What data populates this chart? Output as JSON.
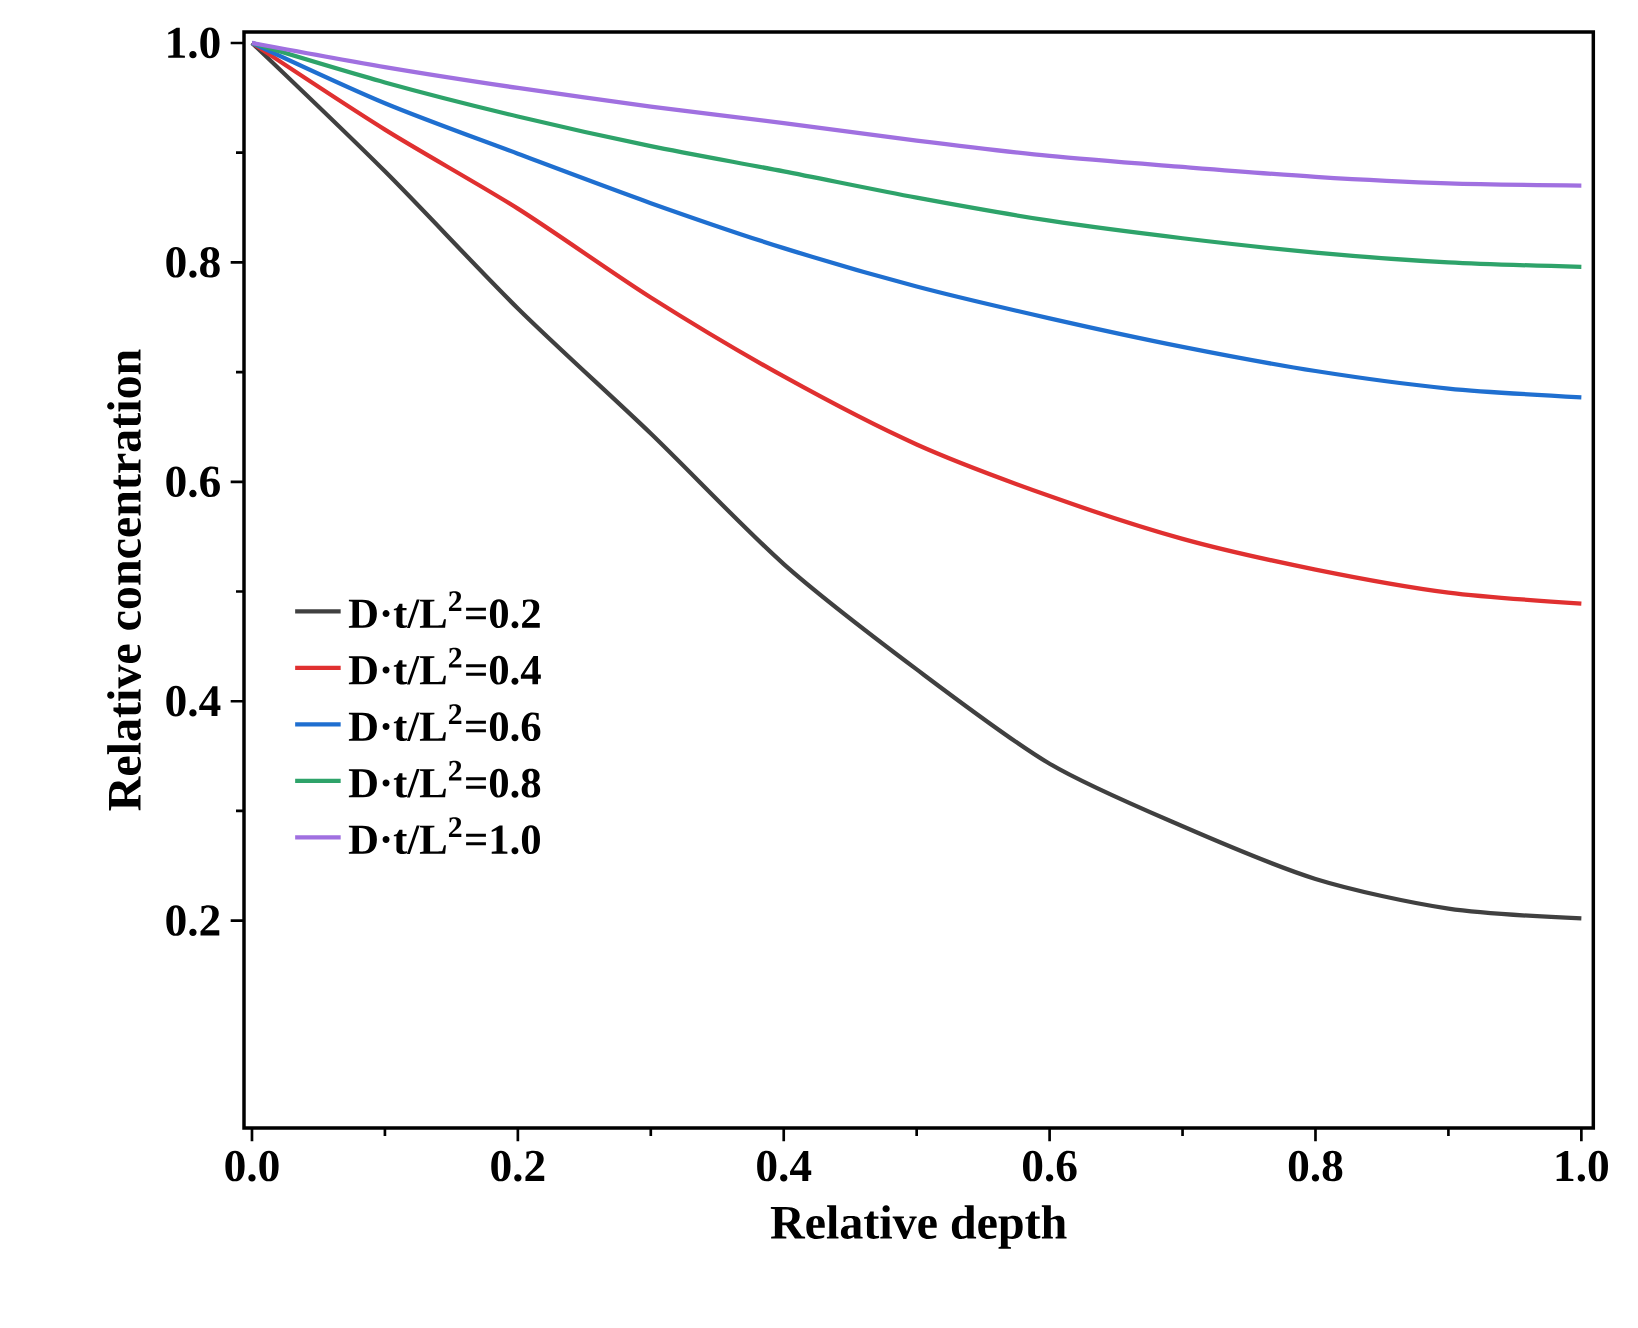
{
  "chart_data": {
    "type": "line",
    "xlabel": "Relative depth",
    "ylabel": "Relative concentration",
    "x": [
      0,
      0.1,
      0.2,
      0.3,
      0.4,
      0.5,
      0.6,
      0.7,
      0.8,
      0.9,
      1.0
    ],
    "series": [
      {
        "name": "D·t/L$^{2}$=0.2",
        "color": "#404040",
        "values": [
          1.0,
          0.883,
          0.758,
          0.644,
          0.525,
          0.429,
          0.343,
          0.286,
          0.238,
          0.211,
          0.202
        ]
      },
      {
        "name": "D·t/L$^{2}$=0.4",
        "color": "#e03030",
        "values": [
          1.0,
          0.921,
          0.849,
          0.768,
          0.696,
          0.634,
          0.587,
          0.548,
          0.52,
          0.499,
          0.489
        ]
      },
      {
        "name": "D·t/L$^{2}$=0.6",
        "color": "#1f6fd0",
        "values": [
          1.0,
          0.945,
          0.899,
          0.854,
          0.813,
          0.778,
          0.749,
          0.723,
          0.701,
          0.685,
          0.677
        ]
      },
      {
        "name": "D·t/L$^{2}$=0.8",
        "color": "#2ea36a",
        "values": [
          1.0,
          0.964,
          0.933,
          0.906,
          0.883,
          0.859,
          0.838,
          0.822,
          0.809,
          0.8,
          0.796
        ]
      },
      {
        "name": "D·t/L$^{2}$=1.0",
        "color": "#a070e0",
        "values": [
          1.0,
          0.978,
          0.959,
          0.942,
          0.927,
          0.911,
          0.897,
          0.887,
          0.878,
          0.872,
          0.87
        ]
      }
    ],
    "xlim": [
      -0.006,
      1.009
    ],
    "ylim": [
      0.011,
      1.01
    ],
    "xticks": [
      {
        "value": 0,
        "label": "0.0"
      },
      0.2,
      0.4,
      0.6,
      0.8,
      {
        "value": 1,
        "label": "1.0"
      }
    ],
    "yticks": [
      0.2,
      0.4,
      0.6,
      0.8,
      {
        "value": 1,
        "label": "1.0"
      }
    ],
    "legend": "left"
  }
}
